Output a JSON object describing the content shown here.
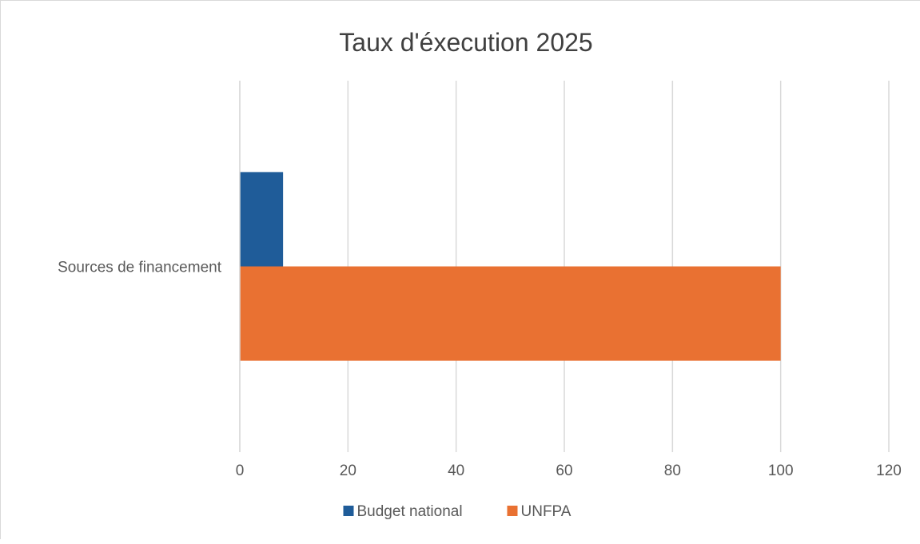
{
  "chart_data": {
    "type": "bar",
    "orientation": "horizontal",
    "title": "Taux d'éxecution 2025",
    "categories": [
      "Sources de financement"
    ],
    "series": [
      {
        "name": "Budget national",
        "values": [
          8
        ],
        "color": "#1f5c99"
      },
      {
        "name": "UNFPA",
        "values": [
          100
        ],
        "color": "#e97132"
      }
    ],
    "xlim": [
      0,
      120
    ],
    "x_ticks": [
      "0",
      "20",
      "40",
      "60",
      "80",
      "100",
      "120"
    ],
    "grid": "vertical",
    "legend_position": "bottom"
  }
}
